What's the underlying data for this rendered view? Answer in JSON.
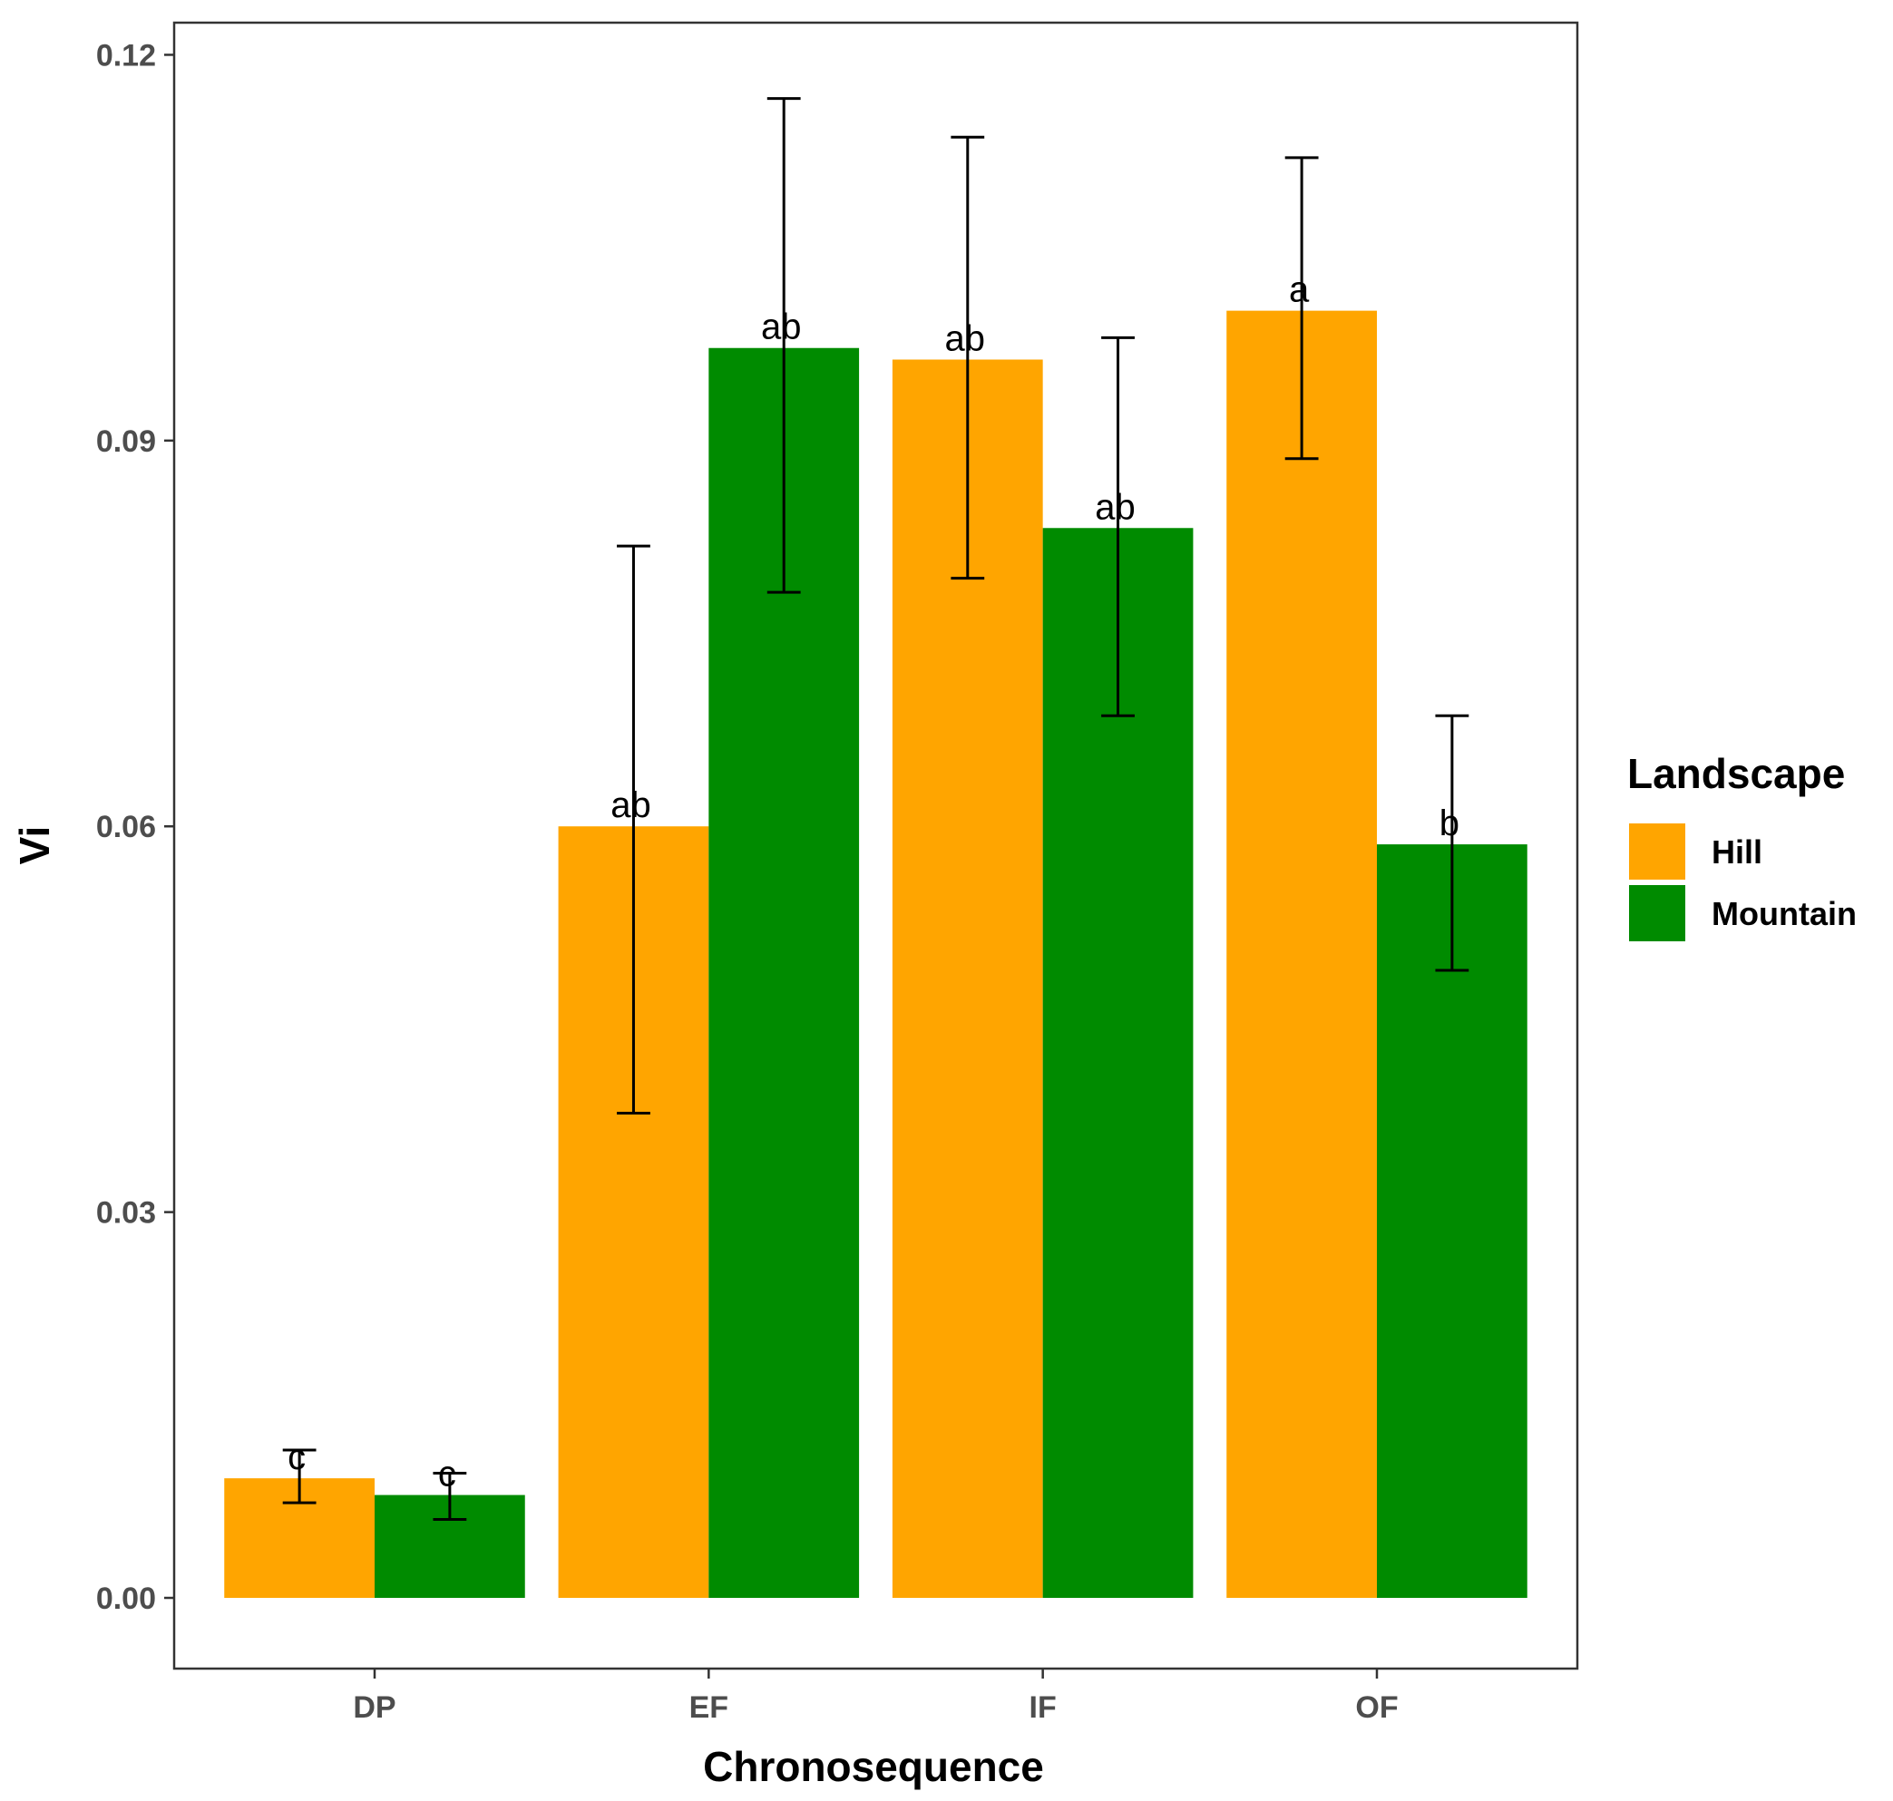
{
  "chart_data": {
    "type": "bar",
    "title": "",
    "xlabel": "Chronosequence",
    "ylabel": "Vi",
    "categories": [
      "DP",
      "EF",
      "IF",
      "OF"
    ],
    "ylim": [
      -0.0055,
      0.1225
    ],
    "yticks": [
      0.0,
      0.03,
      0.06,
      0.09,
      0.12
    ],
    "ytick_labels": [
      "0.00",
      "0.03",
      "0.06",
      "0.09",
      "0.12"
    ],
    "grid": false,
    "legend": {
      "title": "Landscape",
      "position": "right"
    },
    "series": [
      {
        "name": "Hill",
        "color": "#FFA500",
        "values": [
          0.0093,
          0.06,
          0.0963,
          0.1001
        ],
        "err_low": [
          0.0074,
          0.0377,
          0.0793,
          0.0886
        ],
        "err_high": [
          0.0115,
          0.0818,
          0.1136,
          0.112
        ],
        "sig_labels": [
          "c",
          "ab",
          "ab",
          "a"
        ]
      },
      {
        "name": "Mountain",
        "color": "#008B00",
        "values": [
          0.008,
          0.0972,
          0.0832,
          0.0586
        ],
        "err_low": [
          0.0061,
          0.0782,
          0.0686,
          0.0488
        ],
        "err_high": [
          0.0097,
          0.1166,
          0.098,
          0.0686
        ],
        "sig_labels": [
          "c",
          "ab",
          "ab",
          "b"
        ]
      }
    ]
  }
}
